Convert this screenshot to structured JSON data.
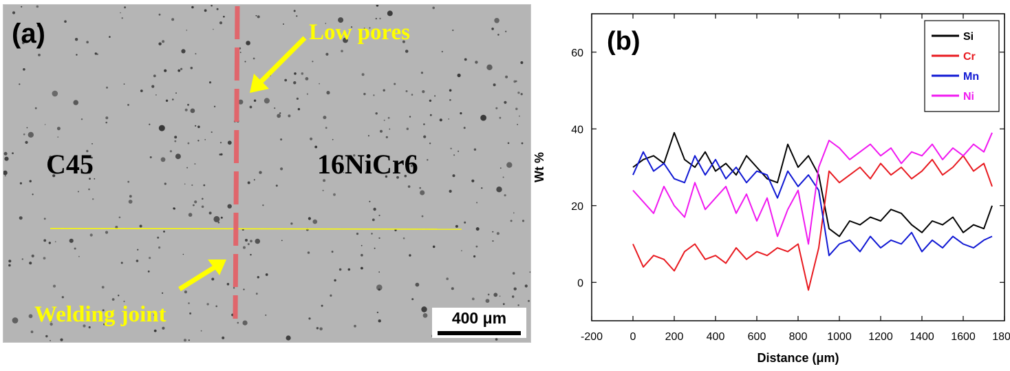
{
  "micrograph": {
    "panel_label": "(a)",
    "left_material": "C45",
    "right_material": "16NiCr6",
    "annotation_top": "Low pores",
    "annotation_bottom": "Welding joint",
    "scale_bar": "400 μm",
    "colors": {
      "annotation": "#ffff00",
      "joint_line": "#e0666c",
      "scan_line": "#ffff00",
      "background": "#b5b5b5"
    }
  },
  "chart_data": {
    "type": "line",
    "panel_label": "(b)",
    "title": "",
    "xlabel": "Distance (μm)",
    "ylabel": "Wt %",
    "xlim": [
      -200,
      1800
    ],
    "ylim": [
      -10,
      70
    ],
    "xticks": [
      -200,
      0,
      200,
      400,
      600,
      800,
      1000,
      1200,
      1400,
      1600,
      1800
    ],
    "yticks": [
      0,
      20,
      40,
      60
    ],
    "x": [
      0,
      50,
      100,
      150,
      200,
      250,
      300,
      350,
      400,
      450,
      500,
      550,
      600,
      650,
      700,
      750,
      800,
      850,
      900,
      950,
      1000,
      1050,
      1100,
      1150,
      1200,
      1250,
      1300,
      1350,
      1400,
      1450,
      1500,
      1550,
      1600,
      1650,
      1700,
      1740
    ],
    "series": [
      {
        "name": "Si",
        "color": "#000000",
        "values": [
          30,
          32,
          33,
          31,
          39,
          32,
          30,
          34,
          29,
          31,
          28,
          33,
          30,
          27,
          26,
          36,
          30,
          33,
          28,
          14,
          12,
          16,
          15,
          17,
          16,
          19,
          18,
          15,
          13,
          16,
          15,
          17,
          13,
          15,
          14,
          20
        ]
      },
      {
        "name": "Cr",
        "color": "#e8191f",
        "values": [
          10,
          4,
          7,
          6,
          3,
          8,
          10,
          6,
          7,
          5,
          9,
          6,
          8,
          7,
          9,
          8,
          10,
          -2,
          9,
          29,
          26,
          28,
          30,
          27,
          31,
          28,
          30,
          27,
          29,
          32,
          28,
          30,
          33,
          29,
          31,
          25
        ]
      },
      {
        "name": "Mn",
        "color": "#0f17d3",
        "values": [
          28,
          34,
          29,
          31,
          27,
          26,
          33,
          28,
          32,
          27,
          30,
          26,
          29,
          28,
          22,
          29,
          25,
          28,
          24,
          7,
          10,
          11,
          8,
          12,
          9,
          11,
          10,
          13,
          8,
          11,
          9,
          12,
          10,
          9,
          11,
          12
        ]
      },
      {
        "name": "Ni",
        "color": "#f018f0",
        "values": [
          24,
          21,
          18,
          25,
          20,
          17,
          26,
          19,
          22,
          25,
          18,
          23,
          16,
          22,
          12,
          19,
          24,
          10,
          30,
          37,
          35,
          32,
          34,
          36,
          33,
          35,
          31,
          34,
          33,
          36,
          32,
          35,
          33,
          36,
          34,
          39
        ]
      }
    ],
    "legend": "top-right"
  }
}
